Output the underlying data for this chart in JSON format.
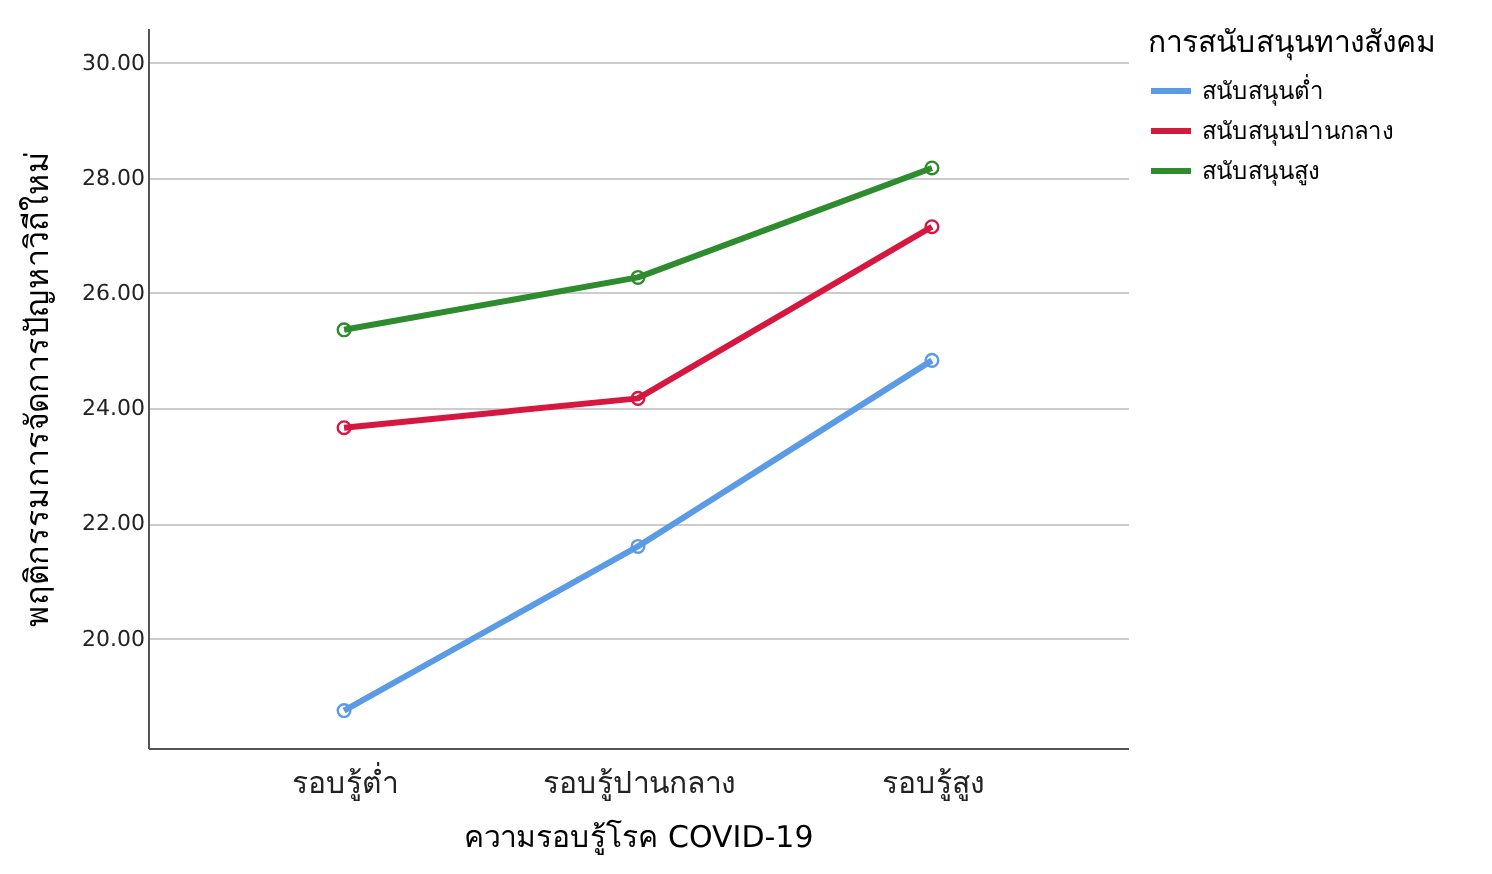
{
  "chart_data": {
    "type": "line",
    "xlabel": "ความรอบรู้โรค COVID-19",
    "ylabel": "พฤติกรรมการจัดการปัญหาวิถีใหม่",
    "legend_title": "การสนับสนุนทางสังคม",
    "categories": [
      "รอบรู้ต่ำ",
      "รอบรู้ปานกลาง",
      "รอบรู้สูง"
    ],
    "series": [
      {
        "name": "สนับสนุนต่ำ",
        "color": "#5b9be6",
        "values": [
          18.75,
          21.6,
          24.83
        ]
      },
      {
        "name": "สนับสนุนปานกลาง",
        "color": "#d6173f",
        "values": [
          23.66,
          24.17,
          27.15
        ]
      },
      {
        "name": "สนับสนุนสูง",
        "color": "#2e8b2e",
        "values": [
          25.36,
          26.27,
          28.17
        ]
      }
    ],
    "ylim": [
      18.1,
      30.6
    ],
    "yticks": [
      {
        "value": 20,
        "label": "20.00"
      },
      {
        "value": 22,
        "label": "22.00"
      },
      {
        "value": 24,
        "label": "24.00"
      },
      {
        "value": 26,
        "label": "26.00"
      },
      {
        "value": 28,
        "label": "28.00"
      },
      {
        "value": 30,
        "label": "30.00"
      }
    ],
    "grid": "y",
    "legend": "top right",
    "marker": "circle",
    "line_style": "solid"
  }
}
